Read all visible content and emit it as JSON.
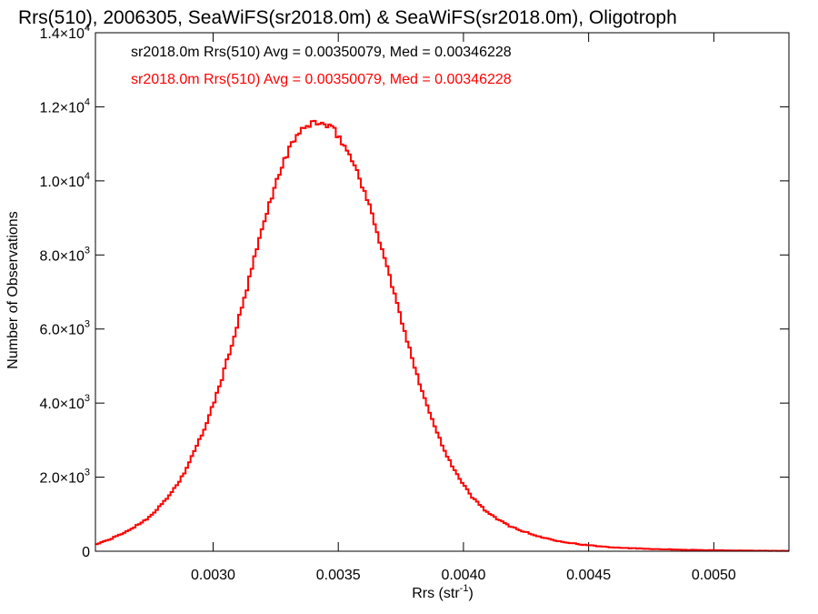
{
  "chart_data": {
    "type": "line",
    "title": "Rrs(510), 2006305, SeaWiFS(sr2018.0m) & SeaWiFS(sr2018.0m), Oligotroph",
    "xlabel": "Rrs (str",
    "xlabel_sup": "-1",
    "xlabel_end": ")",
    "ylabel": "Number of Observations",
    "xlim": [
      0.00253,
      0.0053
    ],
    "ylim": [
      0,
      14000
    ],
    "x_ticks": [
      {
        "value": 0.003,
        "label": "0.0030"
      },
      {
        "value": 0.0035,
        "label": "0.0035"
      },
      {
        "value": 0.004,
        "label": "0.0040"
      },
      {
        "value": 0.0045,
        "label": "0.0045"
      },
      {
        "value": 0.005,
        "label": "0.0050"
      }
    ],
    "y_ticks": [
      {
        "value": 0,
        "mant": "0",
        "exp": ""
      },
      {
        "value": 2000,
        "mant": "2.0×10",
        "exp": "3"
      },
      {
        "value": 4000,
        "mant": "4.0×10",
        "exp": "3"
      },
      {
        "value": 6000,
        "mant": "6.0×10",
        "exp": "3"
      },
      {
        "value": 8000,
        "mant": "8.0×10",
        "exp": "3"
      },
      {
        "value": 10000,
        "mant": "1.0×10",
        "exp": "4"
      },
      {
        "value": 12000,
        "mant": "1.2×10",
        "exp": "4"
      },
      {
        "value": 14000,
        "mant": "1.4×10",
        "exp": "4"
      }
    ],
    "annotations": [
      {
        "text": "sr2018.0m Rrs(510) Avg = 0.00350079, Med = 0.00346228",
        "color": "#000000"
      },
      {
        "text": "sr2018.0m Rrs(510) Avg = 0.00350079, Med = 0.00346228",
        "color": "#ff0000"
      }
    ],
    "series": [
      {
        "color": "#ff0000",
        "x": [
          0.00253,
          0.00258,
          0.00263,
          0.00268,
          0.00273,
          0.00278,
          0.00283,
          0.00288,
          0.00293,
          0.00298,
          0.00303,
          0.00308,
          0.00313,
          0.00318,
          0.00323,
          0.00328,
          0.00333,
          0.00338,
          0.0034,
          0.00343,
          0.00348,
          0.00353,
          0.00358,
          0.00363,
          0.00368,
          0.00373,
          0.00378,
          0.00383,
          0.00388,
          0.00393,
          0.00398,
          0.00403,
          0.00408,
          0.00413,
          0.00418,
          0.00423,
          0.00428,
          0.00433,
          0.00438,
          0.00443,
          0.00448,
          0.00453,
          0.00458,
          0.00463,
          0.00468,
          0.00473,
          0.00478,
          0.00483,
          0.00488,
          0.00493,
          0.00498,
          0.00503,
          0.00508,
          0.00513,
          0.00518,
          0.00523,
          0.00528
        ],
        "y": [
          180,
          300,
          450,
          630,
          850,
          1150,
          1550,
          2050,
          2750,
          3550,
          4550,
          5700,
          6950,
          8300,
          9500,
          10500,
          11200,
          11500,
          11600,
          11550,
          11400,
          10900,
          10200,
          9200,
          8050,
          6800,
          5550,
          4450,
          3450,
          2650,
          2000,
          1500,
          1150,
          880,
          700,
          560,
          440,
          350,
          280,
          220,
          175,
          140,
          115,
          95,
          80,
          68,
          57,
          48,
          40,
          33,
          28,
          24,
          20,
          17,
          14,
          12,
          10
        ]
      }
    ]
  }
}
